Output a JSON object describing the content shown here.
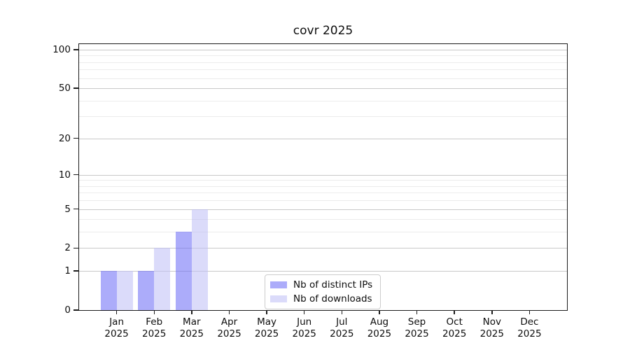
{
  "title": "covr 2025",
  "chart_data": {
    "type": "bar",
    "title": "covr 2025",
    "categories": [
      "Jan",
      "Feb",
      "Mar",
      "Apr",
      "May",
      "Jun",
      "Jul",
      "Aug",
      "Sep",
      "Oct",
      "Nov",
      "Dec"
    ],
    "year_label": "2025",
    "series": [
      {
        "name": "Nb of distinct IPs",
        "color": "#6868f6",
        "alpha": 0.55,
        "values": [
          1,
          1,
          3,
          0,
          0,
          0,
          0,
          0,
          0,
          0,
          0,
          0
        ]
      },
      {
        "name": "Nb of downloads",
        "color": "#bebef6",
        "alpha": 0.55,
        "values": [
          1,
          2,
          5,
          0,
          0,
          0,
          0,
          0,
          0,
          0,
          0,
          0
        ]
      }
    ],
    "y_axis": {
      "scale": "log10(1+x)",
      "ticks": [
        0,
        1,
        2,
        5,
        10,
        20,
        50,
        100
      ],
      "minor_ticks": [
        3,
        4,
        6,
        7,
        8,
        9,
        30,
        40,
        60,
        70,
        80,
        90
      ],
      "top_value": 110.4,
      "ylim": [
        0,
        110.4
      ]
    },
    "grid": true,
    "legend": {
      "position": "bottom-center"
    }
  }
}
